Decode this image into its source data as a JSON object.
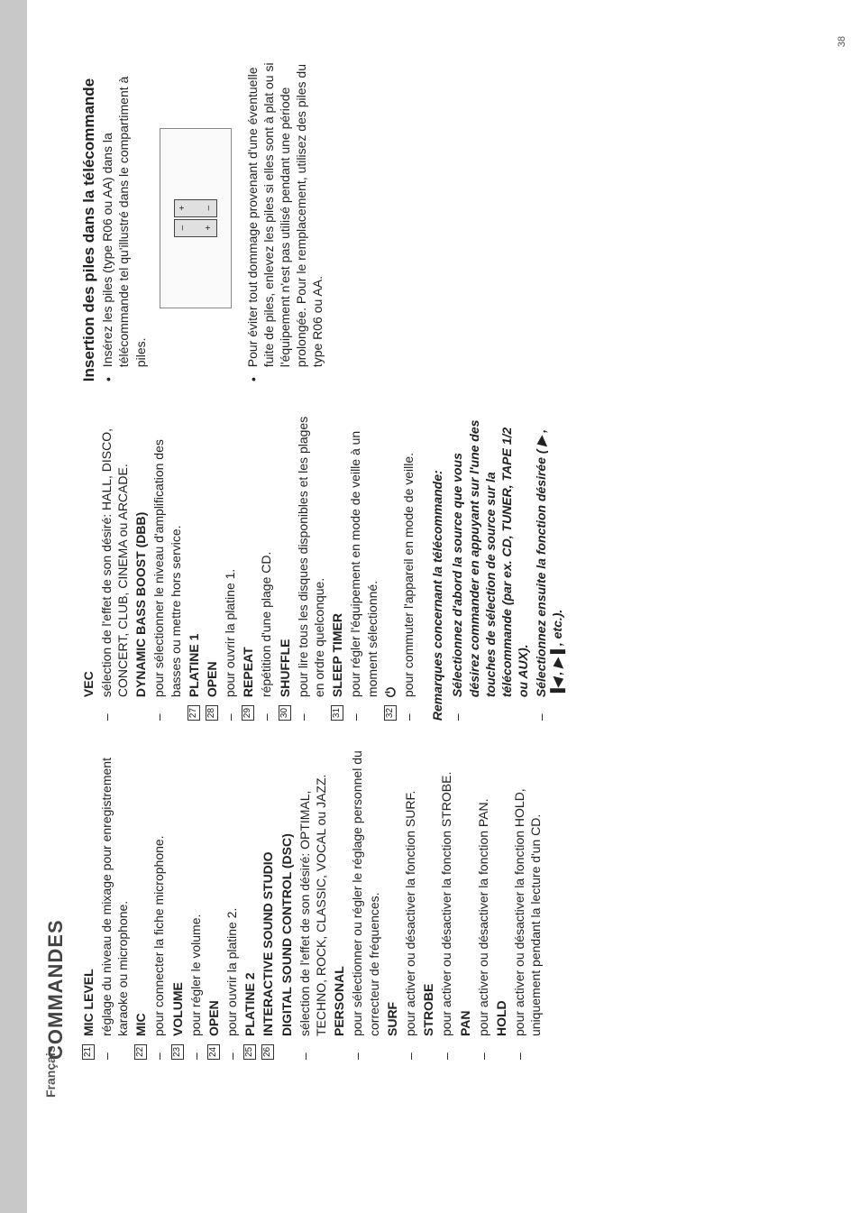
{
  "language_tab": "Français",
  "headline": "COMMANDES",
  "page_number": "38",
  "col1": [
    {
      "num": "21",
      "bold": "MIC LEVEL"
    },
    {
      "dash": true,
      "text": "réglage du niveau de mixage pour enregistrement karaoke ou microphone."
    },
    {
      "num": "22",
      "bold": "MIC"
    },
    {
      "dash": true,
      "text": "pour connecter la fiche microphone."
    },
    {
      "num": "23",
      "bold": "VOLUME"
    },
    {
      "dash": true,
      "text": "pour régler le volume."
    },
    {
      "num": "24",
      "bold": "OPEN"
    },
    {
      "dash": true,
      "text": "pour ouvrir la platine 2."
    },
    {
      "num": "25",
      "bold": "PLATINE 2"
    },
    {
      "num": "26",
      "bold": "INTERACTIVE SOUND STUDIO"
    },
    {
      "plain": true,
      "bold": "DIGITAL SOUND CONTROL (DSC)"
    },
    {
      "dash": true,
      "text": "sélection de l'effet de son désiré: OPTIMAL, TECHNO, ROCK, CLASSIC, VOCAL ou JAZZ."
    },
    {
      "plain": true,
      "bold": "PERSONAL"
    },
    {
      "dash": true,
      "text": "pour sélectionner ou régler le réglage personnel du correcteur de fréquences."
    },
    {
      "plain": true,
      "bold": "SURF"
    },
    {
      "dash": true,
      "text": "pour activer ou désactiver la fonction SURF."
    },
    {
      "plain": true,
      "bold": "STROBE"
    },
    {
      "dash": true,
      "text": "pour activer ou désactiver la fonction STROBE."
    },
    {
      "plain": true,
      "bold": "PAN"
    },
    {
      "dash": true,
      "text": "pour activer ou désactiver la fonction PAN."
    },
    {
      "plain": true,
      "bold": "HOLD"
    },
    {
      "dash": true,
      "text": "pour activer ou désactiver la fonction HOLD, uniquement pendant la lecture d'un CD."
    }
  ],
  "col2": [
    {
      "plain": true,
      "bold": "VEC"
    },
    {
      "dash": true,
      "text": "sélection de l'effet de son désiré: HALL, DISCO, CONCERT, CLUB, CINEMA ou ARCADE."
    },
    {
      "plain": true,
      "bold": "DYNAMIC BASS BOOST (DBB)"
    },
    {
      "dash": true,
      "text": "pour sélectionner le niveau d'amplification des basses ou mettre hors service."
    },
    {
      "num": "27",
      "bold": "PLATINE 1"
    },
    {
      "num": "28",
      "bold": "OPEN"
    },
    {
      "dash": true,
      "text": "pour ouvrir la platine 1."
    },
    {
      "num": "29",
      "bold": "REPEAT"
    },
    {
      "dash": true,
      "text": "répétition d'une plage CD."
    },
    {
      "num": "30",
      "bold": "SHUFFLE"
    },
    {
      "dash": true,
      "text": "pour lire tous les disques disponibles et les plages en ordre quelconque."
    },
    {
      "num": "31",
      "bold": "SLEEP TIMER"
    },
    {
      "dash": true,
      "text": "pour régler l'équipement en mode de veille à un moment sélectionné."
    },
    {
      "num": "32",
      "bold": "⏻"
    },
    {
      "dash": true,
      "text": "pour commuter l'appareil en mode de veille."
    }
  ],
  "col2_remarks_title": "Remarques concernant la télécommande:",
  "col2_remarks": [
    "Sélectionnez d'abord la source que vous désirez commander en appuyant sur l'une des touches de sélection de source sur la télécommande (par ex. CD, TUNER, TAPE 1/2 ou AUX).",
    "Sélectionnez ensuite la fonction désirée ( ▶ , ▐◀ , ▶▐ , etc.)."
  ],
  "col3_title": "Insertion des piles dans la télécommande",
  "col3_bullets": [
    "Insérez les piles (type R06 ou AA) dans la télécommande tel qu'illustré dans le compartiment à piles.",
    "Pour éviter tout dommage provenant d'une éventuelle fuite de piles, enlevez les piles si elles sont à plat ou si l'équipement n'est pas utilisé pendant une période prolongée. Pour le remplacement, utilisez des piles du type R06 ou AA."
  ],
  "battery_marks": {
    "top": "+",
    "bottom": "–"
  }
}
